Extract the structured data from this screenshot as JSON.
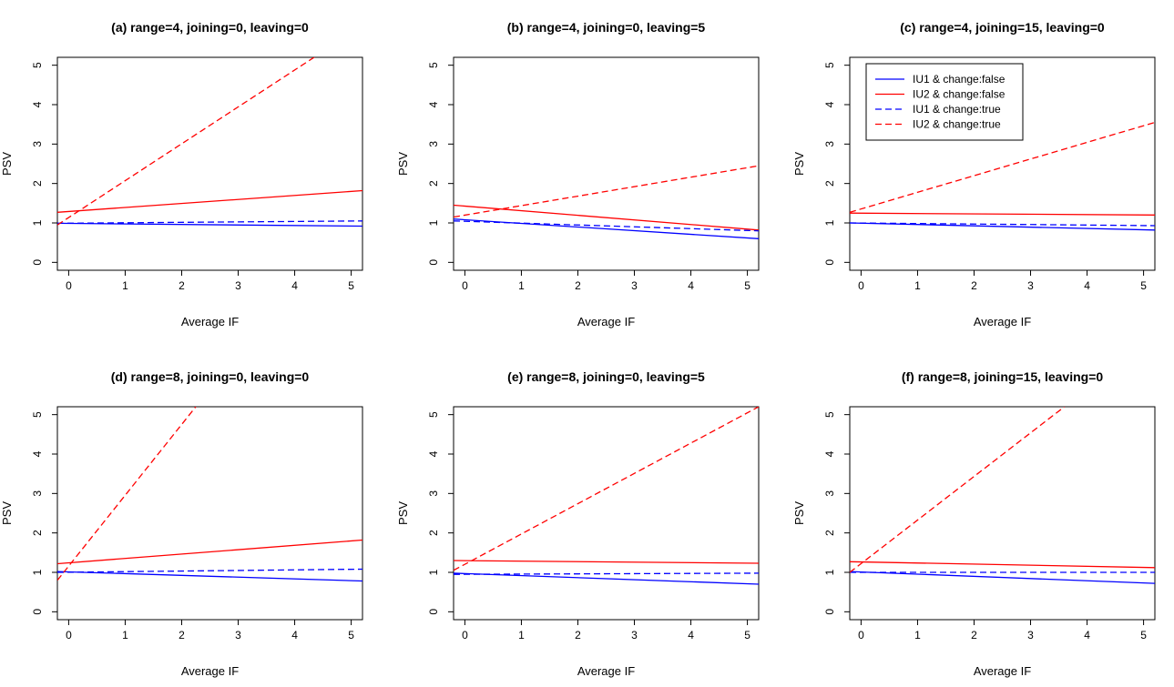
{
  "chart_data": [
    {
      "type": "line",
      "title": "(a) range=4, joining=0, leaving=0",
      "xlabel": "Average IF",
      "ylabel": "PSV",
      "xlim": [
        -0.2,
        5.2
      ],
      "ylim": [
        -0.2,
        5.2
      ],
      "xticks": [
        "0",
        "1",
        "2",
        "3",
        "4",
        "5"
      ],
      "yticks": [
        "0",
        "1",
        "2",
        "3",
        "4",
        "5"
      ],
      "legend": null,
      "series": [
        {
          "ref": 0,
          "x": [
            -0.2,
            5.2
          ],
          "y": [
            0.99,
            0.92
          ]
        },
        {
          "ref": 1,
          "x": [
            -0.2,
            5.2
          ],
          "y": [
            1.27,
            1.82
          ]
        },
        {
          "ref": 2,
          "x": [
            -0.2,
            5.2
          ],
          "y": [
            0.99,
            1.05
          ]
        },
        {
          "ref": 3,
          "x": [
            -0.2,
            5.2
          ],
          "y": [
            0.95,
            6.0
          ]
        }
      ]
    },
    {
      "type": "line",
      "title": "(b) range=4, joining=0, leaving=5",
      "xlabel": "Average IF",
      "ylabel": "PSV",
      "xlim": [
        -0.2,
        5.2
      ],
      "ylim": [
        -0.2,
        5.2
      ],
      "xticks": [
        "0",
        "1",
        "2",
        "3",
        "4",
        "5"
      ],
      "yticks": [
        "0",
        "1",
        "2",
        "3",
        "4",
        "5"
      ],
      "legend": null,
      "series": [
        {
          "ref": 0,
          "x": [
            -0.2,
            5.2
          ],
          "y": [
            1.1,
            0.6
          ]
        },
        {
          "ref": 1,
          "x": [
            -0.2,
            5.2
          ],
          "y": [
            1.45,
            0.82
          ]
        },
        {
          "ref": 2,
          "x": [
            -0.2,
            5.2
          ],
          "y": [
            1.05,
            0.8
          ]
        },
        {
          "ref": 3,
          "x": [
            -0.2,
            5.2
          ],
          "y": [
            1.15,
            2.45
          ]
        }
      ]
    },
    {
      "type": "line",
      "title": "(c) range=4, joining=15, leaving=0",
      "xlabel": "Average IF",
      "ylabel": "PSV",
      "xlim": [
        -0.2,
        5.2
      ],
      "ylim": [
        -0.2,
        5.2
      ],
      "xticks": [
        "0",
        "1",
        "2",
        "3",
        "4",
        "5"
      ],
      "yticks": [
        "0",
        "1",
        "2",
        "3",
        "4",
        "5"
      ],
      "legend": "top-left",
      "series": [
        {
          "ref": 0,
          "x": [
            -0.2,
            5.2
          ],
          "y": [
            1.0,
            0.82
          ]
        },
        {
          "ref": 1,
          "x": [
            -0.2,
            5.2
          ],
          "y": [
            1.25,
            1.2
          ]
        },
        {
          "ref": 2,
          "x": [
            -0.2,
            5.2
          ],
          "y": [
            1.0,
            0.93
          ]
        },
        {
          "ref": 3,
          "x": [
            -0.2,
            5.2
          ],
          "y": [
            1.27,
            3.55
          ]
        }
      ]
    },
    {
      "type": "line",
      "title": "(d) range=8, joining=0, leaving=0",
      "xlabel": "Average IF",
      "ylabel": "PSV",
      "xlim": [
        -0.2,
        5.2
      ],
      "ylim": [
        -0.2,
        5.2
      ],
      "xticks": [
        "0",
        "1",
        "2",
        "3",
        "4",
        "5"
      ],
      "yticks": [
        "0",
        "1",
        "2",
        "3",
        "4",
        "5"
      ],
      "legend": null,
      "series": [
        {
          "ref": 0,
          "x": [
            -0.2,
            5.2
          ],
          "y": [
            1.02,
            0.78
          ]
        },
        {
          "ref": 1,
          "x": [
            -0.2,
            5.2
          ],
          "y": [
            1.22,
            1.82
          ]
        },
        {
          "ref": 2,
          "x": [
            -0.2,
            5.2
          ],
          "y": [
            1.0,
            1.08
          ]
        },
        {
          "ref": 3,
          "x": [
            -0.2,
            2.25
          ],
          "y": [
            0.8,
            5.2
          ]
        }
      ]
    },
    {
      "type": "line",
      "title": "(e) range=8, joining=0, leaving=5",
      "xlabel": "Average IF",
      "ylabel": "PSV",
      "xlim": [
        -0.2,
        5.2
      ],
      "ylim": [
        -0.2,
        5.2
      ],
      "xticks": [
        "0",
        "1",
        "2",
        "3",
        "4",
        "5"
      ],
      "yticks": [
        "0",
        "1",
        "2",
        "3",
        "4",
        "5"
      ],
      "legend": null,
      "series": [
        {
          "ref": 0,
          "x": [
            -0.2,
            5.2
          ],
          "y": [
            0.98,
            0.7
          ]
        },
        {
          "ref": 1,
          "x": [
            -0.2,
            5.2
          ],
          "y": [
            1.3,
            1.23
          ]
        },
        {
          "ref": 2,
          "x": [
            -0.2,
            5.2
          ],
          "y": [
            0.95,
            0.98
          ]
        },
        {
          "ref": 3,
          "x": [
            -0.2,
            5.2
          ],
          "y": [
            1.05,
            5.2
          ]
        }
      ]
    },
    {
      "type": "line",
      "title": "(f) range=8, joining=15, leaving=0",
      "xlabel": "Average IF",
      "ylabel": "PSV",
      "xlim": [
        -0.2,
        5.2
      ],
      "ylim": [
        -0.2,
        5.2
      ],
      "xticks": [
        "0",
        "1",
        "2",
        "3",
        "4",
        "5"
      ],
      "yticks": [
        "0",
        "1",
        "2",
        "3",
        "4",
        "5"
      ],
      "legend": null,
      "series": [
        {
          "ref": 0,
          "x": [
            -0.2,
            5.2
          ],
          "y": [
            1.02,
            0.72
          ]
        },
        {
          "ref": 1,
          "x": [
            -0.2,
            5.2
          ],
          "y": [
            1.27,
            1.12
          ]
        },
        {
          "ref": 2,
          "x": [
            -0.2,
            5.2
          ],
          "y": [
            1.0,
            1.0
          ]
        },
        {
          "ref": 3,
          "x": [
            -0.2,
            3.6
          ],
          "y": [
            1.0,
            5.2
          ]
        }
      ]
    }
  ],
  "series_styles": [
    {
      "name": "IU1 & change:false",
      "color": "#0000ff",
      "dash": "solid"
    },
    {
      "name": "IU2 & change:false",
      "color": "#ff0000",
      "dash": "solid"
    },
    {
      "name": "IU1 & change:true",
      "color": "#0000ff",
      "dash": "dashed"
    },
    {
      "name": "IU2 & change:true",
      "color": "#ff0000",
      "dash": "dashed"
    }
  ]
}
